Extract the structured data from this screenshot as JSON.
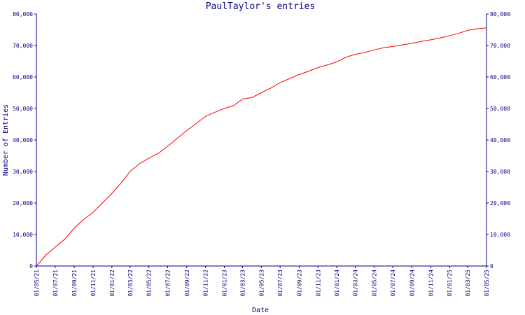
{
  "chart_data": {
    "type": "line",
    "title": "PaulTaylor's entries",
    "xlabel": "Date",
    "ylabel": "Number of Entries",
    "ylim": [
      0,
      80000
    ],
    "yticks": [
      0,
      10000,
      20000,
      30000,
      40000,
      50000,
      60000,
      70000,
      80000
    ],
    "ytick_labels": [
      "0",
      "10,000",
      "20,000",
      "30,000",
      "40,000",
      "50,000",
      "60,000",
      "70,000",
      "80,000"
    ],
    "xlim": [
      "2021-05-01",
      "2025-05-01"
    ],
    "xticks": [
      "2021-05-01",
      "2021-07-01",
      "2021-09-01",
      "2021-11-01",
      "2022-01-01",
      "2022-03-01",
      "2022-05-01",
      "2022-07-01",
      "2022-09-01",
      "2022-11-01",
      "2023-01-01",
      "2023-03-01",
      "2023-05-01",
      "2023-07-01",
      "2023-09-01",
      "2023-11-01",
      "2024-01-01",
      "2024-03-01",
      "2024-05-01",
      "2024-07-01",
      "2024-09-01",
      "2024-11-01",
      "2025-01-01",
      "2025-03-01",
      "2025-05-01"
    ],
    "xtick_labels": [
      "01/05/21",
      "01/07/21",
      "01/09/21",
      "01/11/21",
      "01/01/22",
      "01/03/22",
      "01/05/22",
      "01/07/22",
      "01/09/22",
      "01/11/22",
      "01/01/23",
      "01/03/23",
      "01/05/23",
      "01/07/23",
      "01/09/23",
      "01/11/23",
      "01/01/24",
      "01/03/24",
      "01/05/24",
      "01/07/24",
      "01/09/24",
      "01/11/24",
      "01/01/25",
      "01/03/25",
      "01/05/25"
    ],
    "grid": false,
    "series": [
      {
        "color": "#ff0000",
        "points": [
          {
            "x": "2021-05-01",
            "y": 0
          },
          {
            "x": "2021-06-01",
            "y": 3500
          },
          {
            "x": "2021-07-01",
            "y": 6000
          },
          {
            "x": "2021-08-01",
            "y": 8500
          },
          {
            "x": "2021-09-01",
            "y": 12000
          },
          {
            "x": "2021-10-01",
            "y": 14800
          },
          {
            "x": "2021-11-01",
            "y": 17000
          },
          {
            "x": "2021-12-01",
            "y": 20000
          },
          {
            "x": "2022-01-01",
            "y": 23000
          },
          {
            "x": "2022-02-01",
            "y": 26500
          },
          {
            "x": "2022-03-01",
            "y": 30000
          },
          {
            "x": "2022-04-01",
            "y": 32500
          },
          {
            "x": "2022-05-01",
            "y": 34200
          },
          {
            "x": "2022-06-01",
            "y": 35800
          },
          {
            "x": "2022-07-01",
            "y": 38000
          },
          {
            "x": "2022-08-01",
            "y": 40500
          },
          {
            "x": "2022-09-01",
            "y": 43000
          },
          {
            "x": "2022-10-01",
            "y": 45200
          },
          {
            "x": "2022-11-01",
            "y": 47500
          },
          {
            "x": "2022-12-01",
            "y": 48800
          },
          {
            "x": "2023-01-01",
            "y": 50000
          },
          {
            "x": "2023-02-01",
            "y": 51000
          },
          {
            "x": "2023-03-01",
            "y": 53000
          },
          {
            "x": "2023-04-01",
            "y": 53500
          },
          {
            "x": "2023-05-01",
            "y": 55000
          },
          {
            "x": "2023-06-01",
            "y": 56500
          },
          {
            "x": "2023-07-01",
            "y": 58200
          },
          {
            "x": "2023-08-01",
            "y": 59500
          },
          {
            "x": "2023-09-01",
            "y": 60800
          },
          {
            "x": "2023-10-01",
            "y": 61800
          },
          {
            "x": "2023-11-01",
            "y": 63000
          },
          {
            "x": "2023-12-01",
            "y": 63800
          },
          {
            "x": "2024-01-01",
            "y": 64800
          },
          {
            "x": "2024-02-01",
            "y": 66300
          },
          {
            "x": "2024-03-01",
            "y": 67200
          },
          {
            "x": "2024-04-01",
            "y": 67800
          },
          {
            "x": "2024-05-01",
            "y": 68600
          },
          {
            "x": "2024-06-01",
            "y": 69300
          },
          {
            "x": "2024-07-01",
            "y": 69700
          },
          {
            "x": "2024-08-01",
            "y": 70200
          },
          {
            "x": "2024-09-01",
            "y": 70700
          },
          {
            "x": "2024-10-01",
            "y": 71300
          },
          {
            "x": "2024-11-01",
            "y": 71800
          },
          {
            "x": "2024-12-01",
            "y": 72400
          },
          {
            "x": "2025-01-01",
            "y": 73100
          },
          {
            "x": "2025-02-01",
            "y": 73900
          },
          {
            "x": "2025-03-01",
            "y": 74800
          },
          {
            "x": "2025-04-01",
            "y": 75300
          },
          {
            "x": "2025-05-01",
            "y": 75600
          }
        ]
      }
    ]
  }
}
